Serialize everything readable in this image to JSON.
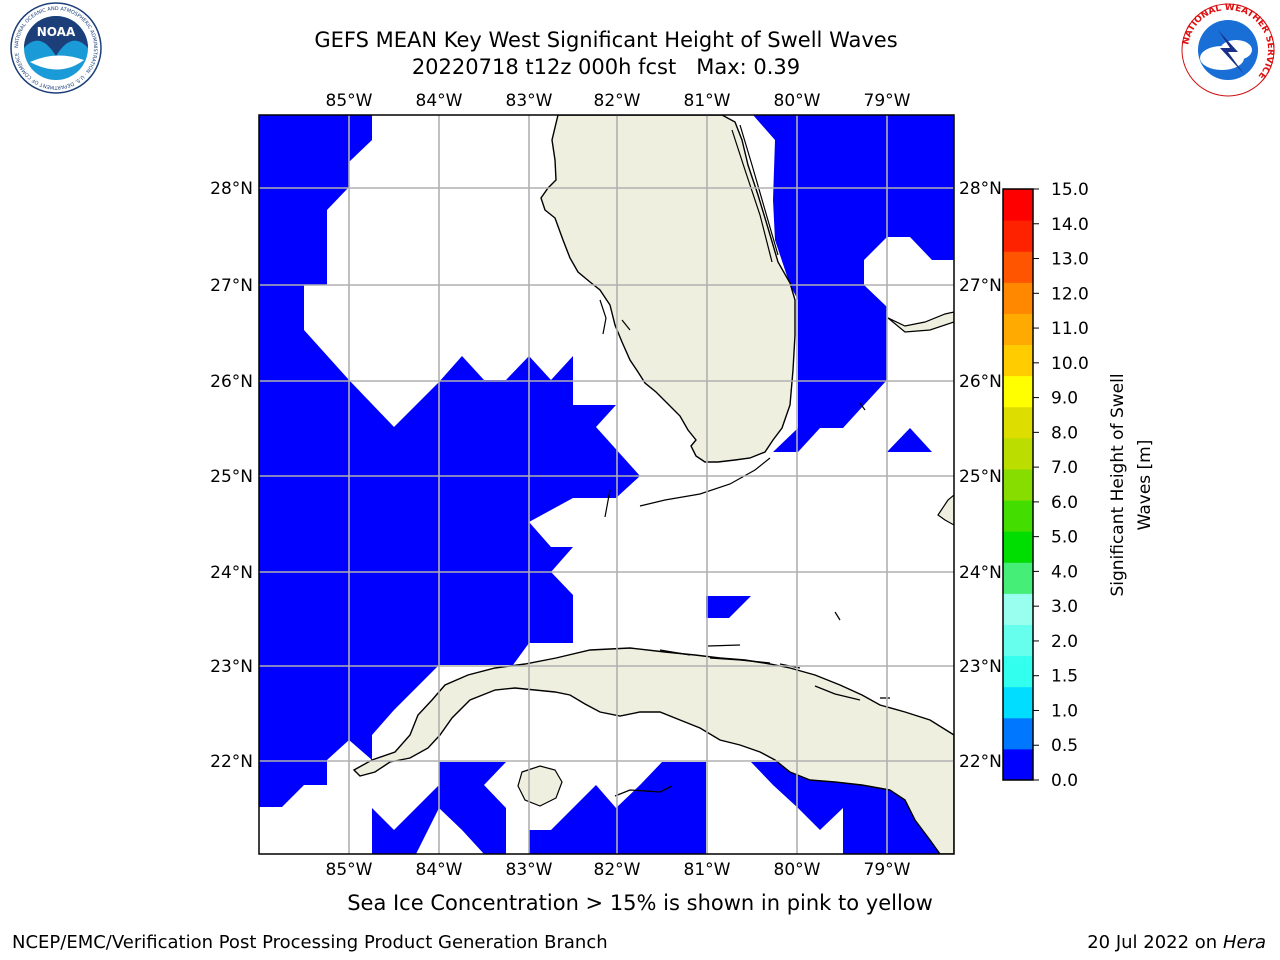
{
  "title": {
    "line1": "GEFS MEAN Key West Significant Height of Swell Waves",
    "line2": "20220718 t12z 000h fcst   Max: 0.39"
  },
  "map": {
    "lon_ticks": [
      "85°W",
      "84°W",
      "83°W",
      "82°W",
      "81°W",
      "80°W",
      "79°W"
    ],
    "lon_values": [
      -85,
      -84,
      -83,
      -82,
      -81,
      -80,
      -79
    ],
    "lat_ticks": [
      "28°N",
      "27°N",
      "26°N",
      "25°N",
      "24°N",
      "23°N",
      "22°N"
    ],
    "lat_values": [
      28,
      27,
      26,
      25,
      24,
      23,
      22
    ],
    "lon_range": [
      -86,
      -78.25
    ],
    "lat_range": [
      21.05,
      28.75
    ],
    "ocean_fill_color": "#0000ff",
    "land_color": "#efefdf",
    "grid_color": "#b0b0b0"
  },
  "colorbar": {
    "label_line1": "Significant Height of Swell",
    "label_line2": "Waves [m]",
    "tick_labels": [
      "0.0",
      "0.5",
      "1.0",
      "1.5",
      "2.0",
      "3.0",
      "4.0",
      "5.0",
      "6.0",
      "7.0",
      "8.0",
      "9.0",
      "10.0",
      "11.0",
      "12.0",
      "13.0",
      "14.0",
      "15.0"
    ],
    "colors": [
      "#0000ff",
      "#0077ff",
      "#00ddff",
      "#33ffee",
      "#66ffee",
      "#99ffee",
      "#44ee77",
      "#00dd00",
      "#44dd00",
      "#88dd00",
      "#bbdd00",
      "#dddd00",
      "#ffff00",
      "#ffcc00",
      "#ffaa00",
      "#ff8800",
      "#ff5500",
      "#ff2200",
      "#ff0000"
    ]
  },
  "sea_ice_note": "Sea Ice Concentration > 15% is shown in pink to yellow",
  "footer": {
    "left": "NCEP/EMC/Verification Post Processing Product Generation Branch",
    "right_prefix": "20 Jul 2022 on ",
    "right_italic": "Hera"
  },
  "logos": {
    "noaa_text": "NOAA",
    "noaa_ring_text": "NATIONAL OCEANIC AND ATMOSPHERIC ADMINISTRATION · U.S. DEPARTMENT OF COMMERCE",
    "nws_ring_text": "NATIONAL WEATHER SERVICE"
  }
}
